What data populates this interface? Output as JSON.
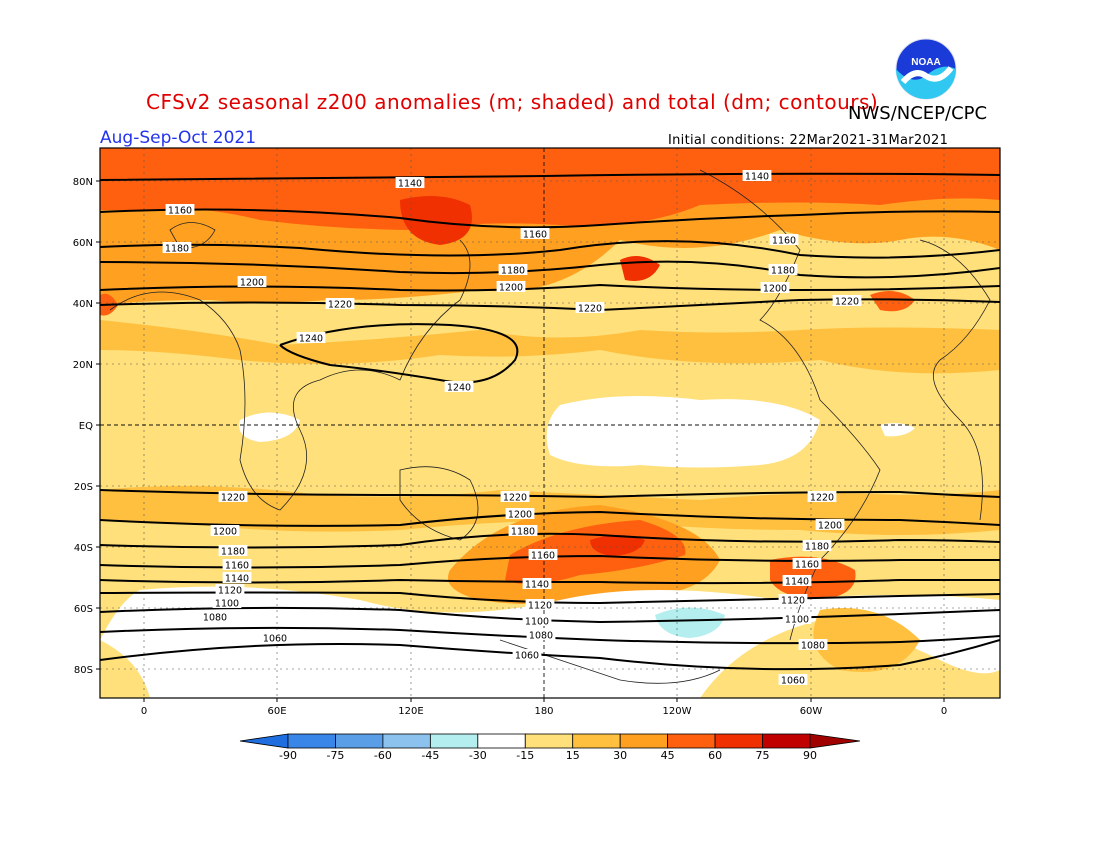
{
  "header": {
    "title": "CFSv2 seasonal z200 anomalies (m; shaded) and total (dm; contours)",
    "agency": "NWS/NCEP/CPC",
    "logo_text": "NOAA",
    "period": "Aug-Sep-Oct 2021",
    "initial_conditions": "Initial conditions: 22Mar2021-31Mar2021"
  },
  "map": {
    "lat_labels": [
      "80N",
      "60N",
      "40N",
      "20N",
      "EQ",
      "20S",
      "40S",
      "60S",
      "80S"
    ],
    "lon_labels": [
      "0",
      "60E",
      "120E",
      "180",
      "120W",
      "60W",
      "0"
    ],
    "contour_labels": [
      "1140",
      "1140",
      "1160",
      "1160",
      "1160",
      "1180",
      "1180",
      "1180",
      "1200",
      "1200",
      "1200",
      "1220",
      "1220",
      "1220",
      "1240",
      "1240",
      "1220",
      "1220",
      "1220",
      "1200",
      "1200",
      "1200",
      "1180",
      "1180",
      "1180",
      "1160",
      "1160",
      "1160",
      "1140",
      "1140",
      "1140",
      "1120",
      "1120",
      "1120",
      "1100",
      "1100",
      "1100",
      "1080",
      "1080",
      "1080",
      "1060",
      "1060",
      "1060"
    ],
    "colorbar": {
      "ticks": [
        "-90",
        "-75",
        "-60",
        "-45",
        "-30",
        "-15",
        "15",
        "30",
        "45",
        "60",
        "75",
        "90"
      ],
      "colors": [
        "#1e6ee0",
        "#3a86e8",
        "#5a9ee8",
        "#8cc3ee",
        "#b4eeee",
        "#ffffff",
        "#ffe07a",
        "#ffc040",
        "#ffa020",
        "#ff6010",
        "#f03000",
        "#c00000",
        "#a00000"
      ]
    }
  }
}
